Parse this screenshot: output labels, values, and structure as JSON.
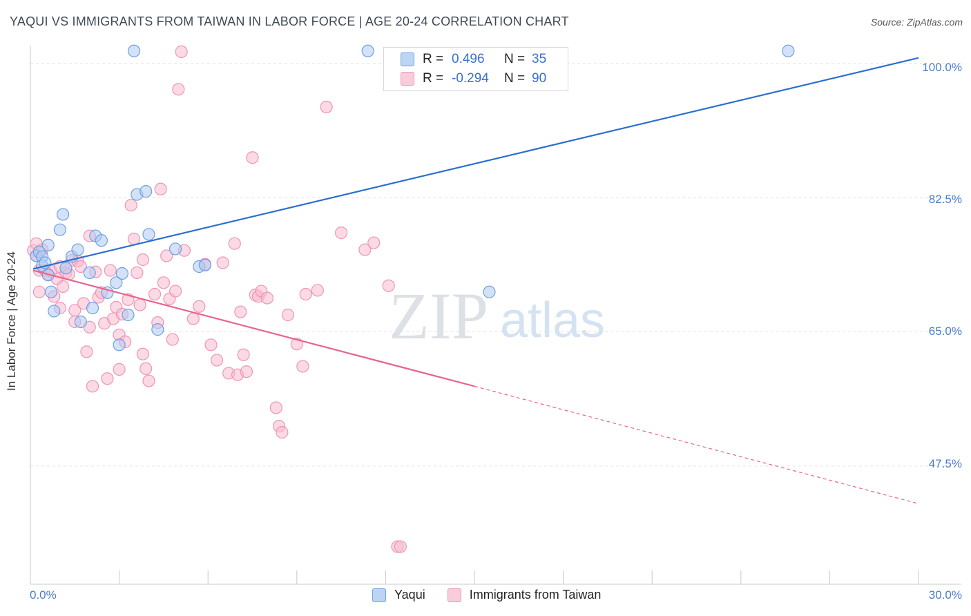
{
  "title": "YAQUI VS IMMIGRANTS FROM TAIWAN IN LABOR FORCE | AGE 20-24 CORRELATION CHART",
  "source": "Source: ZipAtlas.com",
  "watermark": {
    "zip": "ZIP",
    "atlas": "atlas"
  },
  "colors": {
    "yaqui_fill": "#aecbf2",
    "yaqui_stroke": "#6f9fe0",
    "yaqui_line": "#2a6fd0",
    "taiwan_fill": "#f7bcd0",
    "taiwan_stroke": "#ef94b4",
    "taiwan_line": "#e8638f",
    "tick_text": "#4a7ccc",
    "grid": "#e2e2e2"
  },
  "legend": {
    "rows": [
      {
        "r_label": "R =",
        "r_value": "0.496",
        "n_label": "N =",
        "n_value": "35"
      },
      {
        "r_label": "R =",
        "r_value": "-0.294",
        "n_label": "N =",
        "n_value": "90"
      }
    ]
  },
  "bottom_legend": [
    "Yaqui",
    "Immigrants from Taiwan"
  ],
  "chart_data": {
    "type": "scatter",
    "title": "YAQUI VS IMMIGRANTS FROM TAIWAN IN LABOR FORCE | AGE 20-24 CORRELATION CHART",
    "xlabel": "",
    "ylabel": "In Labor Force | Age 20-24",
    "xlim": [
      0,
      30
    ],
    "ylim": [
      32.1,
      102.3
    ],
    "x_tick_labels": [
      {
        "value": 0,
        "label": "0.0%"
      },
      {
        "value": 30,
        "label": "30.0%"
      }
    ],
    "y_tick_labels": [
      {
        "value": 100,
        "label": "100.0%"
      },
      {
        "value": 82.5,
        "label": "82.5%"
      },
      {
        "value": 65,
        "label": "65.0%"
      },
      {
        "value": 47.5,
        "label": "47.5%"
      }
    ],
    "x_minor_ticks": [
      0,
      3,
      6,
      9,
      12,
      15,
      18,
      21,
      24,
      27,
      30
    ],
    "grid": true,
    "legend_position": "top-center",
    "series": [
      {
        "name": "Yaqui",
        "r": 0.496,
        "n": 35,
        "trend": {
          "x": [
            0.1,
            30
          ],
          "y": [
            73.2,
            100.7
          ],
          "style": "solid"
        },
        "points": [
          [
            0.2,
            74.9
          ],
          [
            0.3,
            75.4
          ],
          [
            0.4,
            74.8
          ],
          [
            0.4,
            73.6
          ],
          [
            0.5,
            74.0
          ],
          [
            0.6,
            72.4
          ],
          [
            0.6,
            76.3
          ],
          [
            0.7,
            70.2
          ],
          [
            0.8,
            67.7
          ],
          [
            1.0,
            78.3
          ],
          [
            1.1,
            80.3
          ],
          [
            1.2,
            73.3
          ],
          [
            1.4,
            74.8
          ],
          [
            1.6,
            75.7
          ],
          [
            1.7,
            66.3
          ],
          [
            2.0,
            72.7
          ],
          [
            2.1,
            68.1
          ],
          [
            2.2,
            77.5
          ],
          [
            2.4,
            76.9
          ],
          [
            2.6,
            70.1
          ],
          [
            2.9,
            71.4
          ],
          [
            3.0,
            63.3
          ],
          [
            3.1,
            72.6
          ],
          [
            3.3,
            67.2
          ],
          [
            3.5,
            101.6
          ],
          [
            3.6,
            82.9
          ],
          [
            3.9,
            83.3
          ],
          [
            4.0,
            77.7
          ],
          [
            4.3,
            65.3
          ],
          [
            4.9,
            75.8
          ],
          [
            5.7,
            73.5
          ],
          [
            5.9,
            73.7
          ],
          [
            11.4,
            101.6
          ],
          [
            15.5,
            70.2
          ],
          [
            25.6,
            101.6
          ]
        ]
      },
      {
        "name": "Immigrants from Taiwan",
        "r": -0.294,
        "n": 90,
        "trend": {
          "x": [
            0.1,
            15
          ],
          "y": [
            73.0,
            57.9
          ],
          "style": "solid",
          "dashed_extension": {
            "x": [
              15,
              30
            ],
            "y": [
              57.9,
              42.6
            ]
          }
        },
        "points": [
          [
            0.1,
            75.6
          ],
          [
            0.2,
            76.5
          ],
          [
            0.2,
            74.9
          ],
          [
            0.3,
            73.0
          ],
          [
            0.3,
            70.2
          ],
          [
            0.4,
            75.7
          ],
          [
            0.5,
            73.0
          ],
          [
            0.6,
            72.5
          ],
          [
            0.7,
            72.9
          ],
          [
            0.8,
            69.6
          ],
          [
            0.9,
            71.9
          ],
          [
            1.0,
            68.1
          ],
          [
            1.0,
            73.5
          ],
          [
            1.1,
            70.9
          ],
          [
            1.2,
            72.7
          ],
          [
            1.3,
            72.5
          ],
          [
            1.4,
            74.3
          ],
          [
            1.5,
            66.3
          ],
          [
            1.5,
            67.8
          ],
          [
            1.6,
            74.2
          ],
          [
            1.7,
            73.5
          ],
          [
            1.8,
            68.7
          ],
          [
            1.9,
            62.4
          ],
          [
            2.0,
            77.5
          ],
          [
            2.0,
            65.6
          ],
          [
            2.1,
            57.9
          ],
          [
            2.2,
            72.8
          ],
          [
            2.3,
            69.5
          ],
          [
            2.4,
            70.1
          ],
          [
            2.5,
            66.1
          ],
          [
            2.6,
            58.9
          ],
          [
            2.7,
            73.0
          ],
          [
            2.8,
            66.7
          ],
          [
            2.9,
            68.2
          ],
          [
            3.0,
            64.6
          ],
          [
            3.0,
            60.1
          ],
          [
            3.1,
            67.3
          ],
          [
            3.2,
            63.7
          ],
          [
            3.3,
            69.2
          ],
          [
            3.4,
            81.5
          ],
          [
            3.5,
            77.1
          ],
          [
            3.6,
            72.7
          ],
          [
            3.7,
            68.5
          ],
          [
            3.8,
            74.4
          ],
          [
            3.8,
            62.1
          ],
          [
            3.9,
            60.2
          ],
          [
            4.0,
            58.6
          ],
          [
            4.2,
            69.9
          ],
          [
            4.3,
            66.2
          ],
          [
            4.4,
            83.6
          ],
          [
            4.5,
            71.4
          ],
          [
            4.6,
            74.9
          ],
          [
            4.7,
            69.3
          ],
          [
            4.8,
            64.0
          ],
          [
            4.9,
            70.3
          ],
          [
            5.0,
            96.6
          ],
          [
            5.1,
            101.5
          ],
          [
            5.2,
            75.6
          ],
          [
            5.5,
            66.7
          ],
          [
            5.7,
            68.3
          ],
          [
            5.9,
            73.8
          ],
          [
            6.1,
            63.3
          ],
          [
            6.3,
            61.3
          ],
          [
            6.5,
            74.0
          ],
          [
            6.7,
            59.6
          ],
          [
            6.9,
            76.5
          ],
          [
            7.0,
            59.4
          ],
          [
            7.1,
            67.6
          ],
          [
            7.2,
            62.0
          ],
          [
            7.3,
            59.8
          ],
          [
            7.5,
            87.7
          ],
          [
            7.6,
            69.8
          ],
          [
            7.7,
            69.6
          ],
          [
            7.8,
            70.3
          ],
          [
            8.0,
            69.4
          ],
          [
            8.3,
            55.1
          ],
          [
            8.4,
            52.7
          ],
          [
            8.5,
            51.9
          ],
          [
            8.7,
            67.2
          ],
          [
            9.0,
            63.4
          ],
          [
            9.2,
            60.5
          ],
          [
            9.3,
            69.9
          ],
          [
            9.7,
            70.4
          ],
          [
            10.0,
            94.3
          ],
          [
            10.5,
            77.9
          ],
          [
            11.3,
            75.7
          ],
          [
            11.6,
            76.6
          ],
          [
            12.1,
            71.0
          ],
          [
            12.4,
            37.0
          ],
          [
            12.5,
            37.0
          ]
        ]
      }
    ]
  }
}
